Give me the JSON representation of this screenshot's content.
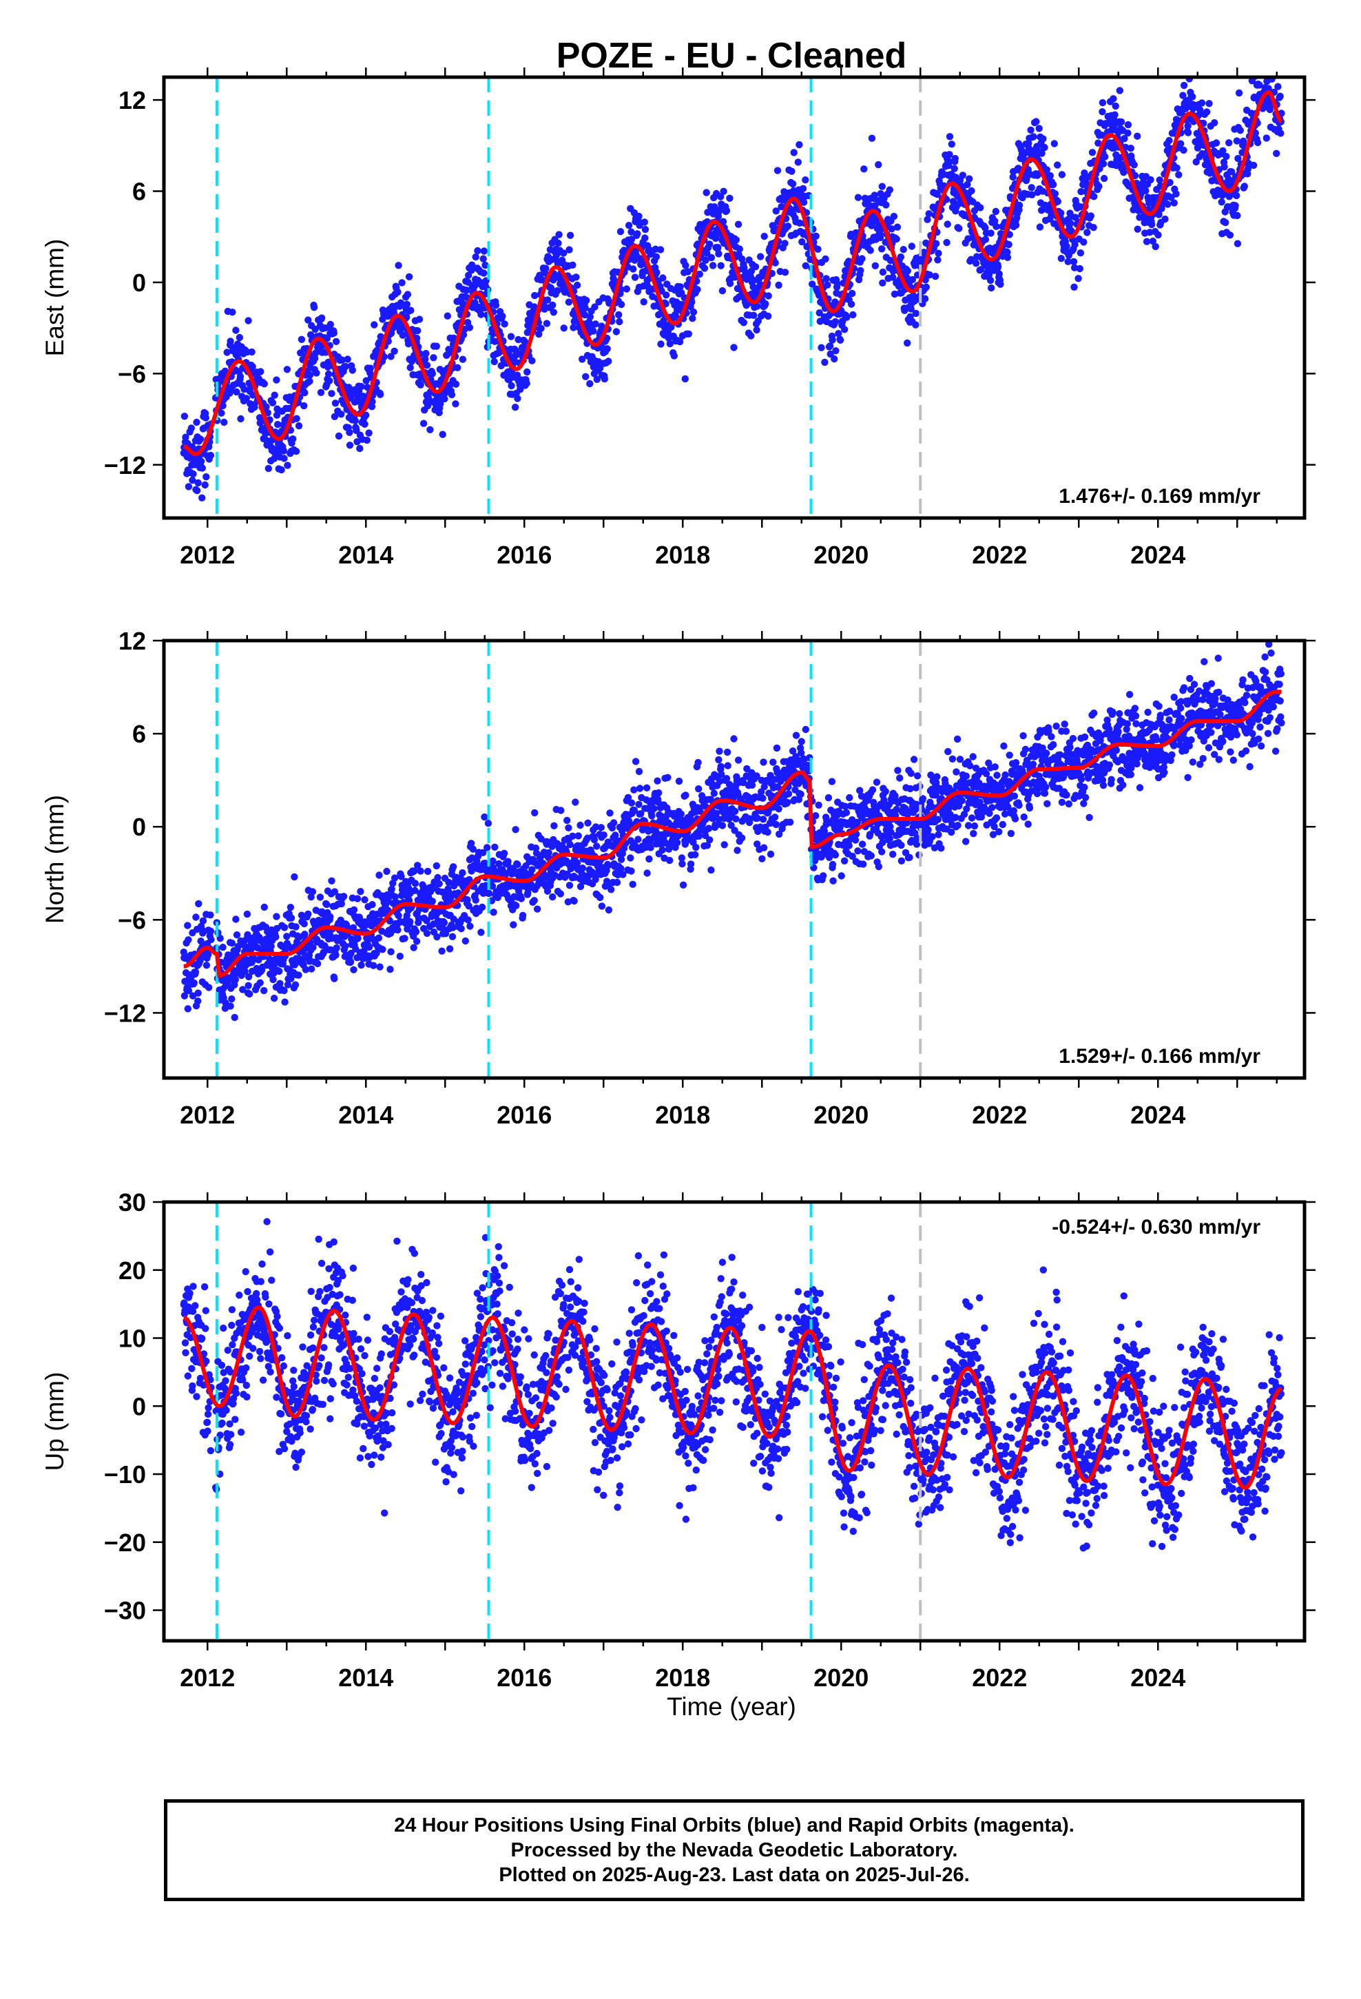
{
  "title": "POZE  - EU - Cleaned",
  "xlabel": "Time (year)",
  "footer": {
    "line1": "24 Hour Positions Using Final Orbits (blue) and Rapid Orbits (magenta).",
    "line2": "Processed by the Nevada Geodetic Laboratory.",
    "line3": "Plotted on 2025-Aug-23. Last data on 2025-Jul-26."
  },
  "colors": {
    "points": "#1a1aff",
    "model": "#ff0000",
    "equipment_change_lines": "#00e5ff",
    "other_event_line": "#c0c0c0"
  },
  "chart_data": [
    {
      "type": "scatter",
      "component": "East",
      "ylabel": "East (mm)",
      "rate_label": "1.476+/- 0.169 mm/yr",
      "rate_position": "bottom-right",
      "xlim": [
        2011.45,
        2025.85
      ],
      "ylim": [
        -15.5,
        13.5
      ],
      "xticks": [
        "2012",
        "2014",
        "2016",
        "2018",
        "2020",
        "2022",
        "2024"
      ],
      "yticks": [
        "12",
        "6",
        "0",
        "-6",
        "-12"
      ],
      "ytick_values": [
        12,
        6,
        0,
        -6,
        -12
      ],
      "vertical_lines": [
        {
          "x": 2012.12,
          "color": "cyan"
        },
        {
          "x": 2015.55,
          "color": "cyan"
        },
        {
          "x": 2019.62,
          "color": "cyan"
        },
        {
          "x": 2021.0,
          "color": "gray"
        }
      ],
      "model": {
        "t0": 2018.6,
        "start": 2011.7,
        "end": 2025.56,
        "offset": -0.2,
        "rate": 1.476,
        "annual_amp": 2.7,
        "annual_peak": 0.45,
        "semiannual_amp": 0.4,
        "semiannual_peak": 0.3,
        "noise_sd": 1.3,
        "steps": [],
        "peaks": [
          [
            2012.4,
            -5.2
          ],
          [
            2013.4,
            -3.7
          ],
          [
            2014.4,
            -2.2
          ],
          [
            2015.4,
            -0.7
          ],
          [
            2016.4,
            1.0
          ],
          [
            2017.4,
            2.4
          ],
          [
            2018.4,
            4.0
          ],
          [
            2019.4,
            5.5
          ],
          [
            2020.4,
            4.7
          ],
          [
            2021.4,
            6.5
          ],
          [
            2022.4,
            8.1
          ],
          [
            2023.4,
            9.7
          ],
          [
            2024.4,
            11.1
          ],
          [
            2025.4,
            12.5
          ]
        ],
        "troughs": [
          [
            2011.85,
            -11.3
          ],
          [
            2012.9,
            -10.3
          ],
          [
            2013.9,
            -8.7
          ],
          [
            2014.9,
            -7.2
          ],
          [
            2015.9,
            -5.7
          ],
          [
            2016.9,
            -4.1
          ],
          [
            2017.9,
            -2.7
          ],
          [
            2018.9,
            -1.3
          ],
          [
            2019.9,
            -1.9
          ],
          [
            2020.9,
            -0.6
          ],
          [
            2021.9,
            1.5
          ],
          [
            2022.9,
            3.0
          ],
          [
            2023.9,
            4.5
          ],
          [
            2024.9,
            6.0
          ]
        ]
      }
    },
    {
      "type": "scatter",
      "component": "North",
      "ylabel": "North (mm)",
      "rate_label": "1.529+/- 0.166 mm/yr",
      "rate_position": "bottom-right",
      "xlim": [
        2011.45,
        2025.85
      ],
      "ylim": [
        -16.2,
        12.0
      ],
      "xticks": [
        "2012",
        "2014",
        "2016",
        "2018",
        "2020",
        "2022",
        "2024"
      ],
      "yticks": [
        "12",
        "6",
        "0",
        "-6",
        "-12"
      ],
      "ytick_values": [
        12,
        6,
        0,
        -6,
        -12
      ],
      "vertical_lines": [
        {
          "x": 2012.12,
          "color": "cyan"
        },
        {
          "x": 2015.55,
          "color": "cyan"
        },
        {
          "x": 2019.62,
          "color": "cyan"
        },
        {
          "x": 2021.0,
          "color": "gray"
        }
      ],
      "model_points": [
        [
          2011.7,
          -9.0
        ],
        [
          2012.0,
          -7.8
        ],
        [
          2012.12,
          -8.2
        ],
        [
          2012.15,
          -9.6
        ],
        [
          2012.5,
          -8.2
        ],
        [
          2013.0,
          -8.2
        ],
        [
          2013.5,
          -6.5
        ],
        [
          2014.0,
          -6.9
        ],
        [
          2014.5,
          -5.0
        ],
        [
          2015.0,
          -5.2
        ],
        [
          2015.5,
          -3.2
        ],
        [
          2016.0,
          -3.5
        ],
        [
          2016.5,
          -1.8
        ],
        [
          2017.0,
          -2.0
        ],
        [
          2017.5,
          0.2
        ],
        [
          2018.0,
          -0.3
        ],
        [
          2018.5,
          1.7
        ],
        [
          2019.0,
          1.2
        ],
        [
          2019.5,
          3.5
        ],
        [
          2019.6,
          3.0
        ],
        [
          2019.63,
          -1.3
        ],
        [
          2020.0,
          -0.5
        ],
        [
          2020.5,
          0.5
        ],
        [
          2021.0,
          0.5
        ],
        [
          2021.5,
          2.2
        ],
        [
          2022.0,
          2.0
        ],
        [
          2022.5,
          3.7
        ],
        [
          2023.0,
          3.8
        ],
        [
          2023.5,
          5.3
        ],
        [
          2024.0,
          5.2
        ],
        [
          2024.5,
          6.8
        ],
        [
          2025.0,
          6.8
        ],
        [
          2025.5,
          8.7
        ]
      ],
      "noise_sd": 1.25
    },
    {
      "type": "scatter",
      "component": "Up",
      "ylabel": "Up (mm)",
      "rate_label": "-0.524+/- 0.630 mm/yr",
      "rate_position": "top-right",
      "xlim": [
        2011.45,
        2025.85
      ],
      "ylim": [
        -34.5,
        30.0
      ],
      "xticks": [
        "2012",
        "2014",
        "2016",
        "2018",
        "2020",
        "2022",
        "2024"
      ],
      "yticks": [
        "30",
        "20",
        "10",
        "0",
        "-10",
        "-20",
        "-30"
      ],
      "ytick_values": [
        30,
        20,
        10,
        0,
        -10,
        -20,
        -30
      ],
      "vertical_lines": [
        {
          "x": 2012.12,
          "color": "cyan"
        },
        {
          "x": 2015.55,
          "color": "cyan"
        },
        {
          "x": 2019.62,
          "color": "cyan"
        },
        {
          "x": 2021.0,
          "color": "gray"
        }
      ],
      "peaks": [
        [
          2011.7,
          13.0
        ],
        [
          2012.65,
          14.5
        ],
        [
          2013.6,
          14.0
        ],
        [
          2014.6,
          13.5
        ],
        [
          2015.6,
          13.0
        ],
        [
          2016.6,
          12.5
        ],
        [
          2017.6,
          12.0
        ],
        [
          2018.6,
          11.5
        ],
        [
          2019.6,
          11.0
        ],
        [
          2020.6,
          6.0
        ],
        [
          2021.6,
          5.5
        ],
        [
          2022.6,
          5.0
        ],
        [
          2023.6,
          4.5
        ],
        [
          2024.6,
          4.0
        ],
        [
          2025.56,
          2.5
        ]
      ],
      "troughs": [
        [
          2012.15,
          0.0
        ],
        [
          2013.1,
          -1.5
        ],
        [
          2014.1,
          -2.0
        ],
        [
          2015.1,
          -2.5
        ],
        [
          2016.1,
          -3.0
        ],
        [
          2017.1,
          -3.5
        ],
        [
          2018.1,
          -4.0
        ],
        [
          2019.1,
          -4.5
        ],
        [
          2020.1,
          -9.5
        ],
        [
          2021.1,
          -10.0
        ],
        [
          2022.1,
          -10.5
        ],
        [
          2023.1,
          -11.0
        ],
        [
          2024.1,
          -11.5
        ],
        [
          2025.1,
          -12.0
        ]
      ],
      "noise_sd": 4.8
    }
  ]
}
